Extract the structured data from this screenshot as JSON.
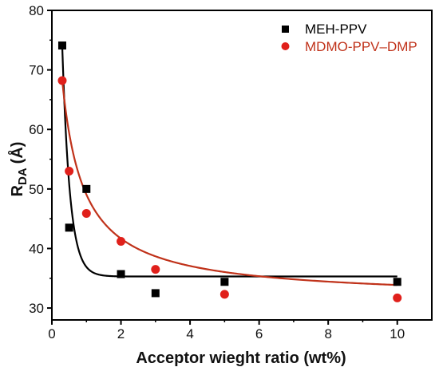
{
  "chart_data": {
    "type": "scatter",
    "title": "",
    "xlabel": "Acceptor wieght ratio (wt%)",
    "ylabel_main": "R",
    "ylabel_sub": "DA",
    "ylabel_unit": "(Å)",
    "xlim": [
      0,
      11
    ],
    "ylim": [
      28,
      80
    ],
    "xticks": [
      0,
      2,
      4,
      6,
      8,
      10
    ],
    "yticks": [
      30,
      40,
      50,
      60,
      70,
      80
    ],
    "legend_position": "top-right",
    "colors": {
      "meh": "#000000",
      "mdmo": "#e0201b",
      "mdmo_line": "#c0321a",
      "mdmo_label": "#c0321a",
      "axis": "#000000"
    },
    "series": [
      {
        "name": "MEH-PPV",
        "marker": "square",
        "x": [
          0.3,
          0.5,
          1.0,
          2.0,
          3.0,
          5.0,
          10.0
        ],
        "y": [
          74.1,
          43.5,
          50.0,
          35.7,
          32.5,
          34.4,
          34.4
        ]
      },
      {
        "name": "MDMO-PPV–DMP",
        "marker": "circle",
        "x": [
          0.3,
          0.5,
          1.0,
          2.0,
          3.0,
          5.0,
          10.0
        ],
        "y": [
          68.2,
          53.0,
          45.9,
          41.2,
          36.5,
          32.3,
          31.7
        ]
      }
    ]
  }
}
